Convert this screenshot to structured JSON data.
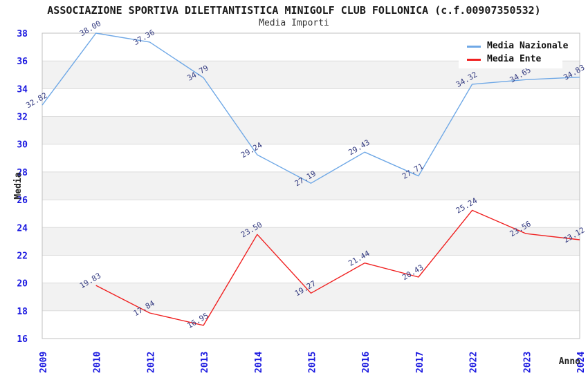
{
  "header": {
    "title": "ASSOCIAZIONE SPORTIVA DILETTANTISTICA MINIGOLF CLUB FOLLONICA (c.f.00907350532)",
    "subtitle": "Media Importi"
  },
  "chart_data": {
    "type": "line",
    "title": "ASSOCIAZIONE SPORTIVA DILETTANTISTICA MINIGOLF CLUB FOLLONICA (c.f.00907350532)",
    "subtitle": "Media Importi",
    "xlabel": "Anno",
    "ylabel": "Media",
    "categories": [
      "2009",
      "2010",
      "2012",
      "2013",
      "2014",
      "2015",
      "2016",
      "2017",
      "2022",
      "2023",
      "2024"
    ],
    "series": [
      {
        "name": "Media Nazionale",
        "color": "#6fa8e6",
        "values": [
          32.82,
          38.0,
          37.36,
          34.79,
          29.24,
          27.19,
          29.43,
          27.71,
          34.32,
          34.65,
          34.83
        ]
      },
      {
        "name": "Media Ente",
        "color": "#f02020",
        "values": [
          null,
          19.83,
          17.84,
          16.95,
          23.5,
          19.27,
          21.44,
          20.43,
          25.24,
          23.56,
          23.12
        ]
      }
    ],
    "ylim": [
      16,
      38
    ],
    "ytick_step": 2,
    "yticks": [
      16,
      18,
      20,
      22,
      24,
      26,
      28,
      30,
      32,
      34,
      36,
      38
    ],
    "grid": true,
    "legend_position": "top-right",
    "colors": {
      "tick_label": "#1a18e0",
      "value_label": "#333a80",
      "grid": "#dcdcdc",
      "band": "#f2f2f2",
      "frame": "#c0c0c0",
      "background": "#ffffff"
    }
  }
}
